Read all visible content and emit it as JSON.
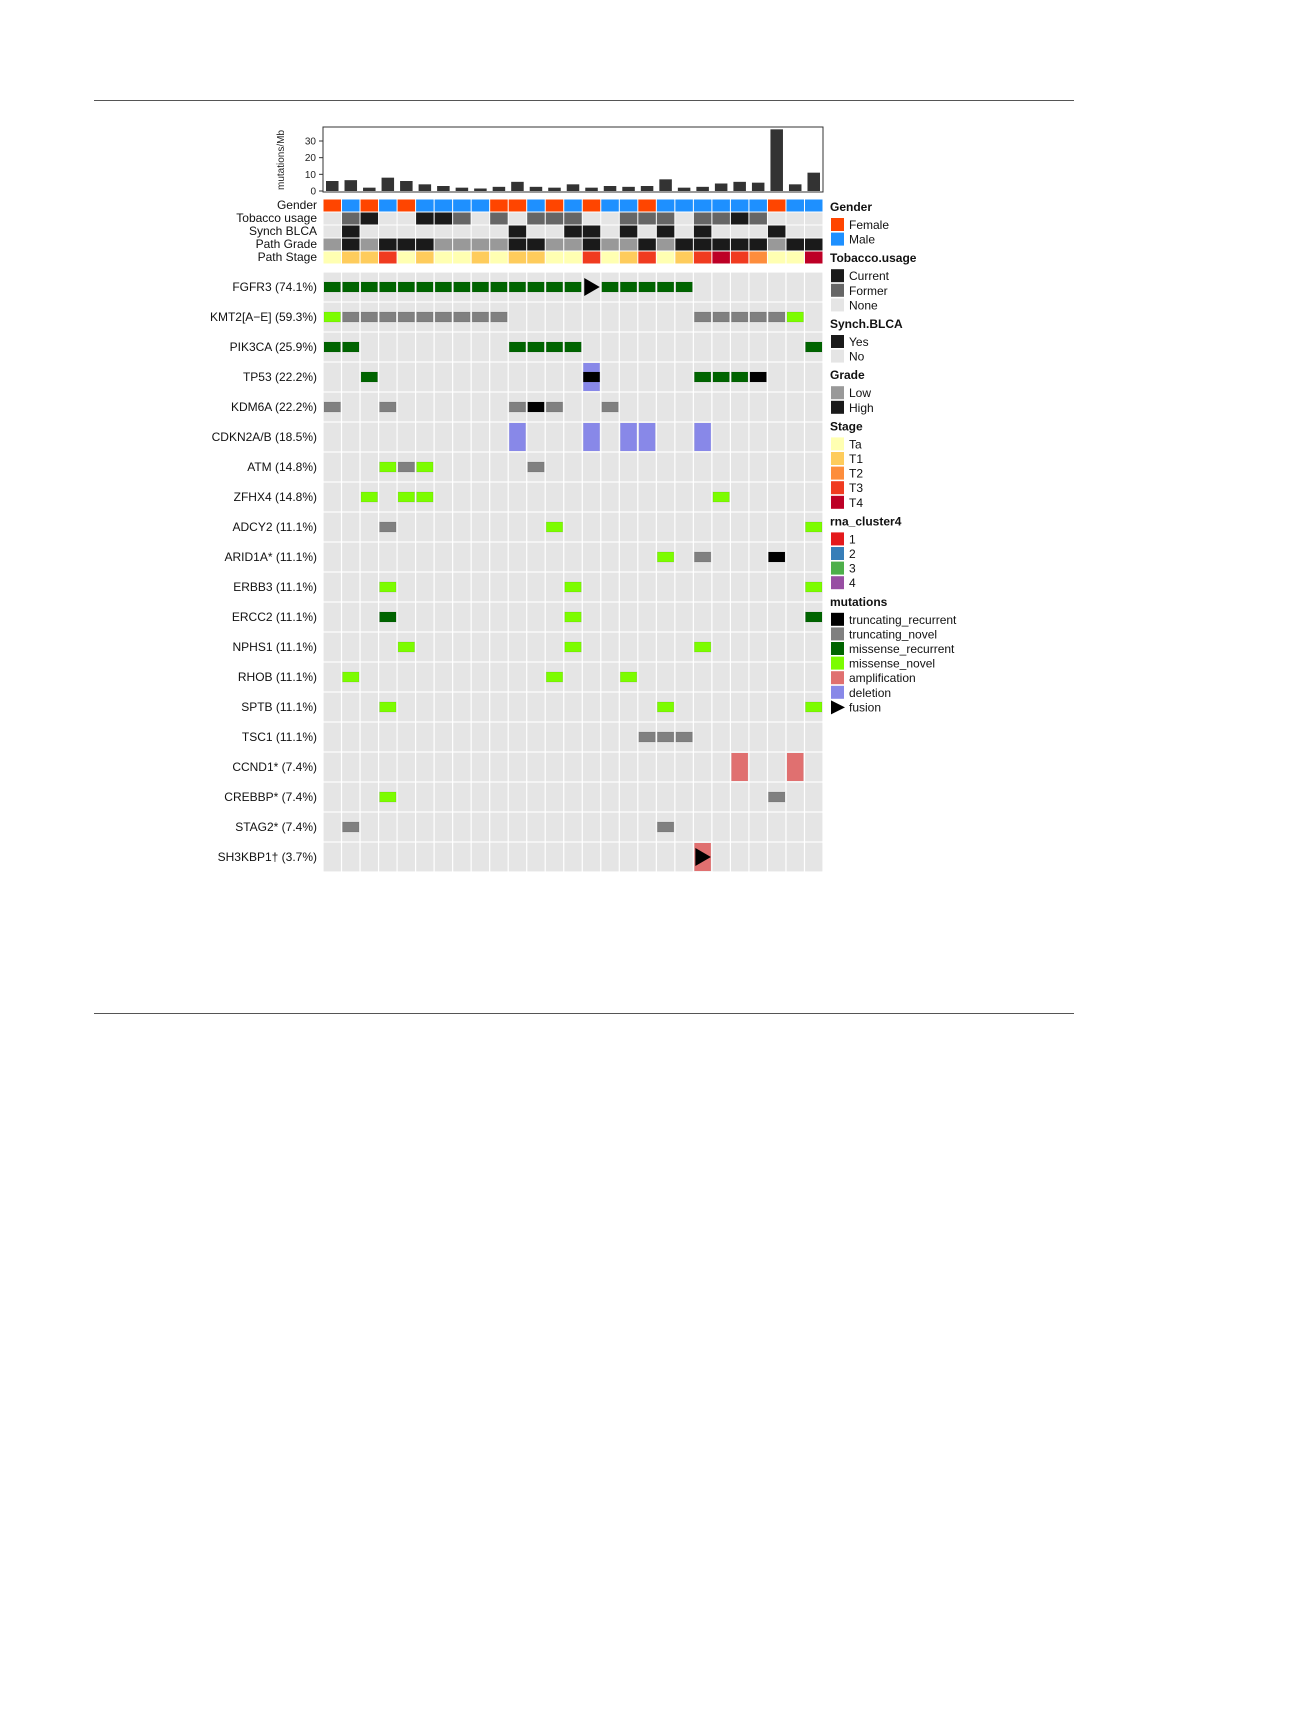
{
  "chart_data": {
    "type": "heatmap",
    "title": "",
    "n_samples": 27,
    "tmb": {
      "ylabel": "mutations/Mb",
      "yticks": [
        0,
        10,
        20,
        30
      ],
      "ylim": [
        0,
        39
      ],
      "values": [
        6,
        6.5,
        2,
        8,
        6,
        4,
        3,
        2,
        1.5,
        2.5,
        5.5,
        2.5,
        2,
        4,
        2,
        3,
        2.5,
        3,
        7,
        2,
        2.5,
        4.5,
        5.5,
        5,
        37,
        4,
        11
      ]
    },
    "annotations": [
      {
        "label": "Gender",
        "key": "gender",
        "values": [
          "F",
          "M",
          "F",
          "M",
          "F",
          "M",
          "M",
          "M",
          "M",
          "F",
          "F",
          "M",
          "F",
          "M",
          "F",
          "M",
          "M",
          "F",
          "M",
          "M",
          "M",
          "M",
          "M",
          "M",
          "F",
          "M",
          "M"
        ]
      },
      {
        "label": "Tobacco usage",
        "key": "tobacco",
        "values": [
          "None",
          "Former",
          "Current",
          "None",
          "None",
          "Current",
          "Current",
          "Former",
          "None",
          "Former",
          "None",
          "Former",
          "Former",
          "Former",
          "None",
          "None",
          "Former",
          "Former",
          "Former",
          "None",
          "Former",
          "Former",
          "Current",
          "Former",
          "None",
          "None",
          "None"
        ]
      },
      {
        "label": "Synch BLCA",
        "key": "synch",
        "values": [
          "No",
          "Yes",
          "No",
          "No",
          "No",
          "No",
          "No",
          "No",
          "No",
          "No",
          "Yes",
          "No",
          "No",
          "Yes",
          "Yes",
          "No",
          "Yes",
          "No",
          "Yes",
          "No",
          "Yes",
          "No",
          "No",
          "No",
          "Yes",
          "No",
          "No"
        ]
      },
      {
        "label": "Path Grade",
        "key": "grade",
        "values": [
          "Low",
          "High",
          "Low",
          "High",
          "High",
          "High",
          "Low",
          "Low",
          "Low",
          "Low",
          "High",
          "High",
          "Low",
          "Low",
          "High",
          "Low",
          "Low",
          "High",
          "Low",
          "High",
          "High",
          "High",
          "High",
          "High",
          "Low",
          "High",
          "High"
        ]
      },
      {
        "label": "Path Stage",
        "key": "stage",
        "values": [
          "Ta",
          "T1",
          "T1",
          "T3",
          "Ta",
          "T1",
          "Ta",
          "Ta",
          "T1",
          "Ta",
          "T1",
          "T1",
          "Ta",
          "Ta",
          "T3",
          "Ta",
          "T1",
          "T3",
          "Ta",
          "T1",
          "T3",
          "T4",
          "T3",
          "T2",
          "Ta",
          "Ta",
          "T4"
        ]
      }
    ],
    "genes": [
      {
        "label": "FGFR3 (74.1%)",
        "alterations": [
          [
            0,
            "mr"
          ],
          [
            1,
            "mr"
          ],
          [
            2,
            "mr"
          ],
          [
            3,
            "mr"
          ],
          [
            4,
            "mr"
          ],
          [
            5,
            "mr"
          ],
          [
            6,
            "mr"
          ],
          [
            7,
            "mr"
          ],
          [
            8,
            "mr"
          ],
          [
            9,
            "mr"
          ],
          [
            10,
            "mr"
          ],
          [
            11,
            "mr"
          ],
          [
            12,
            "mr"
          ],
          [
            13,
            "mr"
          ],
          [
            14,
            "fus"
          ],
          [
            15,
            "mr"
          ],
          [
            16,
            "mr"
          ],
          [
            17,
            "mr"
          ],
          [
            18,
            "mr"
          ],
          [
            19,
            "mr"
          ]
        ]
      },
      {
        "label": "KMT2[A−E] (59.3%)",
        "alterations": [
          [
            0,
            "mn"
          ],
          [
            1,
            "tn"
          ],
          [
            2,
            "tn"
          ],
          [
            3,
            "tn"
          ],
          [
            4,
            "tn"
          ],
          [
            5,
            "tn"
          ],
          [
            6,
            "tn"
          ],
          [
            7,
            "tn"
          ],
          [
            8,
            "tn"
          ],
          [
            9,
            "tn"
          ],
          [
            20,
            "tn"
          ],
          [
            21,
            "tn"
          ],
          [
            22,
            "tn"
          ],
          [
            23,
            "tn"
          ],
          [
            24,
            "tn"
          ],
          [
            25,
            "mn"
          ]
        ]
      },
      {
        "label": "PIK3CA (25.9%)",
        "alterations": [
          [
            0,
            "mr"
          ],
          [
            1,
            "mr"
          ],
          [
            10,
            "mr"
          ],
          [
            11,
            "mr"
          ],
          [
            12,
            "mr"
          ],
          [
            13,
            "mr"
          ],
          [
            26,
            "mr"
          ]
        ]
      },
      {
        "label": "TP53 (22.2%)",
        "alterations": [
          [
            2,
            "mr"
          ],
          [
            14,
            "del"
          ],
          [
            14,
            "tr"
          ],
          [
            20,
            "mr"
          ],
          [
            21,
            "mr"
          ],
          [
            22,
            "mr"
          ],
          [
            23,
            "tr"
          ]
        ]
      },
      {
        "label": "KDM6A (22.2%)",
        "alterations": [
          [
            0,
            "tn"
          ],
          [
            3,
            "tn"
          ],
          [
            10,
            "tn"
          ],
          [
            11,
            "tr"
          ],
          [
            12,
            "tn"
          ],
          [
            15,
            "tn"
          ]
        ]
      },
      {
        "label": "CDKN2A/B (18.5%)",
        "alterations": [
          [
            10,
            "del"
          ],
          [
            14,
            "del"
          ],
          [
            16,
            "del"
          ],
          [
            17,
            "del"
          ],
          [
            20,
            "del"
          ]
        ]
      },
      {
        "label": "ATM (14.8%)",
        "alterations": [
          [
            3,
            "mn"
          ],
          [
            4,
            "tn"
          ],
          [
            5,
            "mn"
          ],
          [
            11,
            "tn"
          ]
        ]
      },
      {
        "label": "ZFHX4 (14.8%)",
        "alterations": [
          [
            2,
            "mn"
          ],
          [
            4,
            "mn"
          ],
          [
            5,
            "mn"
          ],
          [
            21,
            "mn"
          ]
        ]
      },
      {
        "label": "ADCY2 (11.1%)",
        "alterations": [
          [
            3,
            "tn"
          ],
          [
            12,
            "mn"
          ],
          [
            26,
            "mn"
          ]
        ]
      },
      {
        "label": "ARID1A* (11.1%)",
        "alterations": [
          [
            18,
            "mn"
          ],
          [
            20,
            "tn"
          ],
          [
            24,
            "tr"
          ]
        ]
      },
      {
        "label": "ERBB3 (11.1%)",
        "alterations": [
          [
            3,
            "mn"
          ],
          [
            13,
            "mn"
          ],
          [
            26,
            "mn"
          ]
        ]
      },
      {
        "label": "ERCC2 (11.1%)",
        "alterations": [
          [
            3,
            "mr"
          ],
          [
            13,
            "mn"
          ],
          [
            26,
            "mr"
          ]
        ]
      },
      {
        "label": "NPHS1 (11.1%)",
        "alterations": [
          [
            4,
            "mn"
          ],
          [
            13,
            "mn"
          ],
          [
            20,
            "mn"
          ]
        ]
      },
      {
        "label": "RHOB (11.1%)",
        "alterations": [
          [
            1,
            "mn"
          ],
          [
            12,
            "mn"
          ],
          [
            16,
            "mn"
          ]
        ]
      },
      {
        "label": "SPTB (11.1%)",
        "alterations": [
          [
            3,
            "mn"
          ],
          [
            18,
            "mn"
          ],
          [
            26,
            "mn"
          ]
        ]
      },
      {
        "label": "TSC1 (11.1%)",
        "alterations": [
          [
            17,
            "tn"
          ],
          [
            18,
            "tn"
          ],
          [
            19,
            "tn"
          ]
        ]
      },
      {
        "label": "CCND1* (7.4%)",
        "alterations": [
          [
            22,
            "amp"
          ],
          [
            25,
            "amp"
          ]
        ]
      },
      {
        "label": "CREBBP* (7.4%)",
        "alterations": [
          [
            3,
            "mn"
          ],
          [
            24,
            "tn"
          ]
        ]
      },
      {
        "label": "STAG2* (7.4%)",
        "alterations": [
          [
            1,
            "tn"
          ],
          [
            18,
            "tn"
          ]
        ]
      },
      {
        "label": "SH3KBP1† (3.7%)",
        "alterations": [
          [
            20,
            "amp"
          ],
          [
            20,
            "fus"
          ]
        ]
      }
    ],
    "legend": [
      {
        "title": "Gender",
        "items": [
          {
            "code": "F",
            "label": "Female",
            "color": "#FF4500"
          },
          {
            "code": "M",
            "label": "Male",
            "color": "#1E90FF"
          }
        ]
      },
      {
        "title": "Tobacco.usage",
        "items": [
          {
            "code": "Current",
            "label": "Current",
            "color": "#1A1A1A"
          },
          {
            "code": "Former",
            "label": "Former",
            "color": "#666666"
          },
          {
            "code": "None",
            "label": "None",
            "color": "#E5E5E5"
          }
        ]
      },
      {
        "title": "Synch.BLCA",
        "items": [
          {
            "code": "Yes",
            "label": "Yes",
            "color": "#1A1A1A"
          },
          {
            "code": "No",
            "label": "No",
            "color": "#E5E5E5"
          }
        ]
      },
      {
        "title": "Grade",
        "items": [
          {
            "code": "Low",
            "label": "Low",
            "color": "#999999"
          },
          {
            "code": "High",
            "label": "High",
            "color": "#1A1A1A"
          }
        ]
      },
      {
        "title": "Stage",
        "items": [
          {
            "code": "Ta",
            "label": "Ta",
            "color": "#FFFFB2"
          },
          {
            "code": "T1",
            "label": "T1",
            "color": "#FECC5C"
          },
          {
            "code": "T2",
            "label": "T2",
            "color": "#FD8D3C"
          },
          {
            "code": "T3",
            "label": "T3",
            "color": "#F03B20"
          },
          {
            "code": "T4",
            "label": "T4",
            "color": "#BD0026"
          }
        ]
      },
      {
        "title": "rna_cluster4",
        "items": [
          {
            "code": "1",
            "label": "1",
            "color": "#E41A1C"
          },
          {
            "code": "2",
            "label": "2",
            "color": "#377EB8"
          },
          {
            "code": "3",
            "label": "3",
            "color": "#4DAF4A"
          },
          {
            "code": "4",
            "label": "4",
            "color": "#984EA3"
          }
        ]
      },
      {
        "title": "mutations",
        "items": [
          {
            "code": "tr",
            "label": "truncating_recurrent",
            "color": "#000000"
          },
          {
            "code": "tn",
            "label": "truncating_novel",
            "color": "#808080"
          },
          {
            "code": "mr",
            "label": "missense_recurrent",
            "color": "#006400"
          },
          {
            "code": "mn",
            "label": "missense_novel",
            "color": "#7CFC00"
          },
          {
            "code": "amp",
            "label": "amplification",
            "color": "#E07070"
          },
          {
            "code": "del",
            "label": "deletion",
            "color": "#8888E8"
          },
          {
            "code": "fus",
            "label": "fusion",
            "color": "#000000"
          }
        ]
      }
    ],
    "colors": {
      "background_cell": "#E5E5E5",
      "tmb_bar": "#333333"
    }
  }
}
